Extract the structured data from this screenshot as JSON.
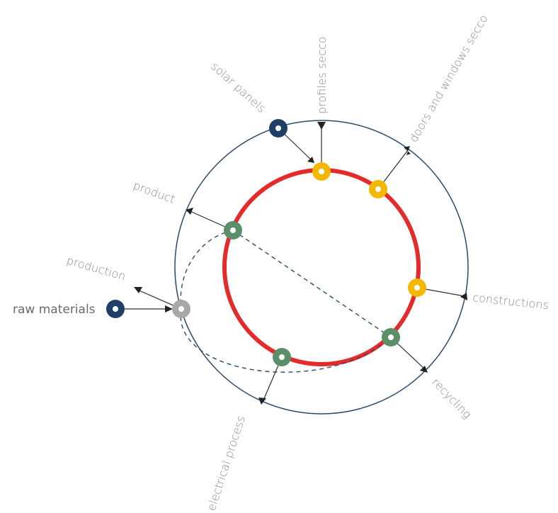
{
  "labels": {
    "profiles": "profiles secco",
    "doors": "doors and windows secco",
    "solar": "solar panels",
    "product": "product",
    "production": "production",
    "raw": "raw materials",
    "constructions": "constructions",
    "recycling": "recycling",
    "electrical": "electrical process"
  },
  "colors": {
    "outer_ring": "#2b4a6b",
    "inner_ring": "#e32b2b",
    "yellow_node": "#f5b800",
    "green_node": "#5a8f6a",
    "navy_node": "#1f3f66",
    "gray_node": "#a8a8a8"
  }
}
